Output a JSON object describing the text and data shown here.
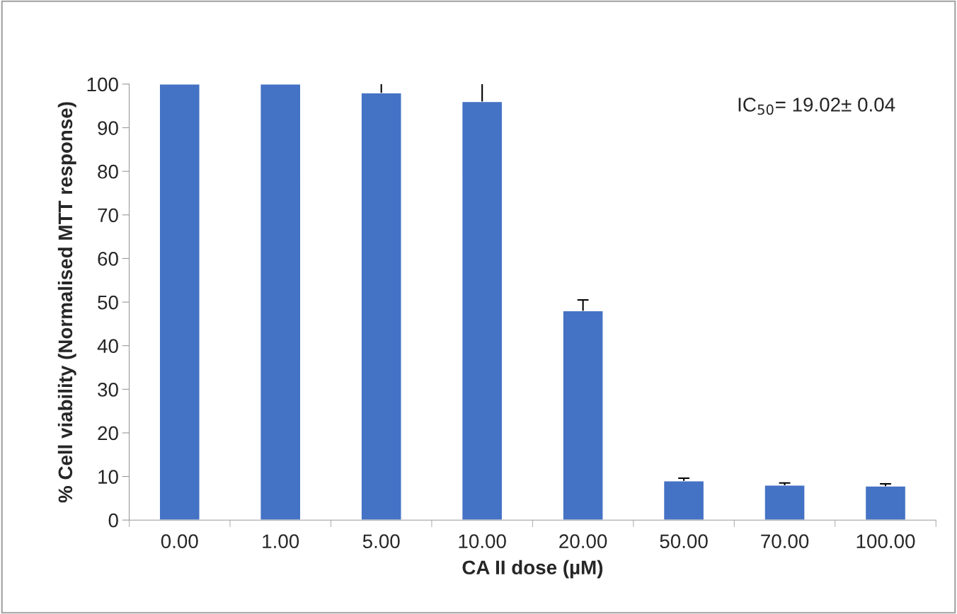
{
  "chart_data": {
    "type": "bar",
    "xlabel": "CA II dose (µM)",
    "ylabel": "% Cell viability (Normalised MTT response)",
    "categories": [
      "0.00",
      "1.00",
      "5.00",
      "10.00",
      "20.00",
      "50.00",
      "70.00",
      "100.00"
    ],
    "values": [
      100,
      100,
      98,
      96,
      48,
      9,
      8,
      7.8
    ],
    "errors": [
      null,
      null,
      [
        98,
        100
      ],
      [
        96,
        100
      ],
      [
        48,
        50.5
      ],
      [
        9,
        9.6
      ],
      [
        8,
        8.5
      ],
      [
        7.8,
        8.3
      ]
    ],
    "color": "#4472c4",
    "ylim": [
      0,
      100
    ],
    "yticks": [
      0,
      10,
      20,
      30,
      40,
      50,
      60,
      70,
      80,
      90,
      100
    ],
    "grid": false,
    "annotations": [
      "IC$_{50}$= 19.02± 0.04"
    ]
  }
}
